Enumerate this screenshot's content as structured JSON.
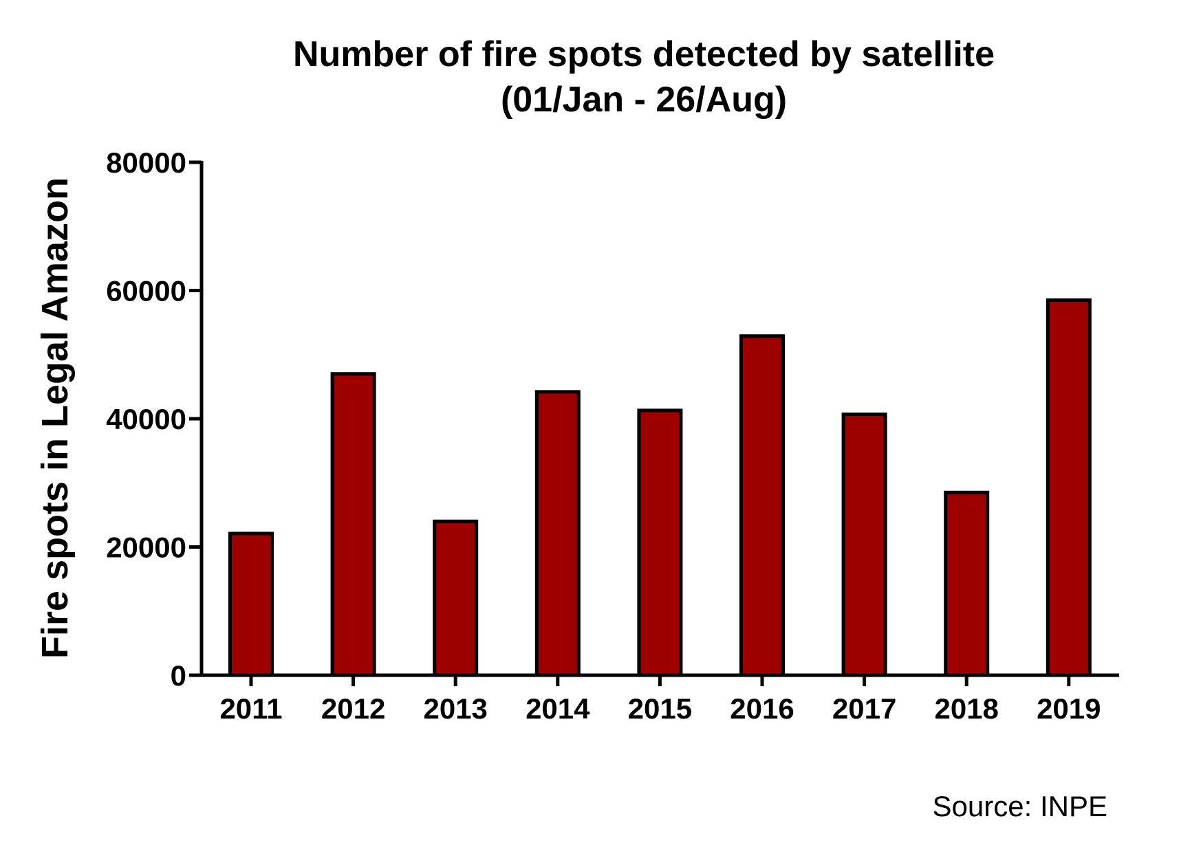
{
  "chart_data": {
    "type": "bar",
    "title": "Number of fire spots detected by satellite",
    "subtitle": "(01/Jan - 26/Aug)",
    "xlabel": "",
    "ylabel": "Fire spots in Legal  Amazon",
    "categories": [
      "2011",
      "2012",
      "2013",
      "2014",
      "2015",
      "2016",
      "2017",
      "2018",
      "2019"
    ],
    "values": [
      22100,
      47000,
      24000,
      44200,
      41300,
      52900,
      40700,
      28500,
      58500
    ],
    "ylim": [
      0,
      80000
    ],
    "yticks": [
      "0",
      "20000",
      "40000",
      "60000",
      "80000"
    ],
    "grid": false,
    "legend": "none",
    "bar_color": "#9e0000",
    "bar_edge_color": "#000000",
    "annotation": "Source: INPE"
  }
}
